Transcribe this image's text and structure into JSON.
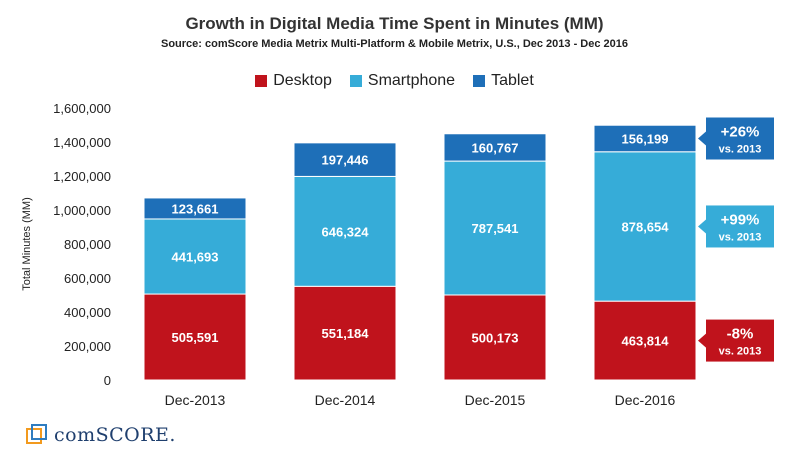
{
  "chart_data": {
    "type": "bar",
    "stacked": true,
    "title": "Growth in Digital Media Time Spent in Minutes (MM)",
    "subtitle": "Source: comScore Media Metrix Multi-Platform & Mobile Metrix, U.S., Dec 2013 - Dec 2016",
    "ylabel": "Total Minutes (MM)",
    "xlabel": "",
    "ylim": [
      0,
      1600000
    ],
    "yticks": [
      0,
      200000,
      400000,
      600000,
      800000,
      1000000,
      1200000,
      1400000,
      1600000
    ],
    "ytick_labels": [
      "0",
      "200,000",
      "400,000",
      "600,000",
      "800,000",
      "1,000,000",
      "1,200,000",
      "1,400,000",
      "1,600,000"
    ],
    "grid": false,
    "legend_position": "top-center",
    "categories": [
      "Dec-2013",
      "Dec-2014",
      "Dec-2015",
      "Dec-2016"
    ],
    "series": [
      {
        "name": "Desktop",
        "color": "#c0131c",
        "values": [
          505591,
          551184,
          500173,
          463814
        ],
        "labels": [
          "505,591",
          "551,184",
          "500,173",
          "463,814"
        ]
      },
      {
        "name": "Smartphone",
        "color": "#36acd8",
        "values": [
          441693,
          646324,
          787541,
          878654
        ],
        "labels": [
          "441,693",
          "646,324",
          "787,541",
          "878,654"
        ]
      },
      {
        "name": "Tablet",
        "color": "#1e6fb8",
        "values": [
          123661,
          197446,
          160767,
          156199
        ],
        "labels": [
          "123,661",
          "197,446",
          "160,767",
          "156,199"
        ]
      }
    ],
    "annotations": [
      {
        "series": "Tablet",
        "value": "+26%",
        "note": "vs. 2013",
        "color": "#1e6fb8"
      },
      {
        "series": "Smartphone",
        "value": "+99%",
        "note": "vs. 2013",
        "color": "#36acd8"
      },
      {
        "series": "Desktop",
        "value": "-8%",
        "note": "vs. 2013",
        "color": "#c0131c"
      }
    ]
  },
  "branding": {
    "logo_text": "comSCORE.",
    "logo_icon": "comscore-logo-icon"
  }
}
